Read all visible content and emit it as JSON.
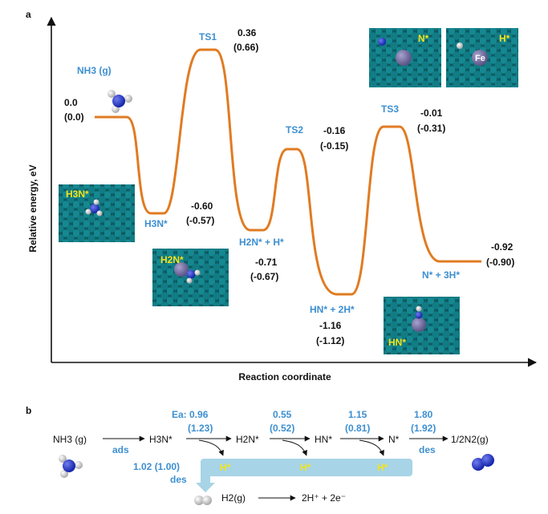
{
  "panel_a": {
    "label": "a",
    "y_axis_label": "Relative energy, eV",
    "x_axis_label": "Reaction coordinate",
    "states": [
      {
        "id": "nh3",
        "name": "NH3 (g)",
        "energy": "0.0",
        "energy_alt": "(0.0)"
      },
      {
        "id": "h3n",
        "name": "H3N*",
        "energy": "-0.60",
        "energy_alt": "(-0.57)"
      },
      {
        "id": "ts1",
        "name": "TS1",
        "energy": "0.36",
        "energy_alt": "(0.66)"
      },
      {
        "id": "h2n",
        "name": "H2N* + H*",
        "energy": "-0.71",
        "energy_alt": "(-0.67)"
      },
      {
        "id": "ts2",
        "name": "TS2",
        "energy": "-0.16",
        "energy_alt": "(-0.15)"
      },
      {
        "id": "hn",
        "name": "HN* + 2H*",
        "energy": "-1.16",
        "energy_alt": "(-1.12)"
      },
      {
        "id": "ts3",
        "name": "TS3",
        "energy": "-0.01",
        "energy_alt": "(-0.31)"
      },
      {
        "id": "n",
        "name": "N* + 3H*",
        "energy": "-0.92",
        "energy_alt": "(-0.90)"
      }
    ],
    "insets": {
      "h3n": "H3N*",
      "h2n": "H2N*",
      "hn": "HN*",
      "n": "N*",
      "h": "H*",
      "fe": "Fe"
    }
  },
  "panel_b": {
    "label": "b",
    "species": [
      "NH3 (g)",
      "H3N*",
      "H2N*",
      "HN*",
      "N*",
      "1/2N2(g)"
    ],
    "steps": [
      {
        "top": "Ea: 0.96",
        "bottom": "(1.23)"
      },
      {
        "top": "0.55",
        "bottom": "(0.52)"
      },
      {
        "top": "1.15",
        "bottom": "(0.81)"
      },
      {
        "top": "1.80",
        "bottom": "(1.92)"
      }
    ],
    "ads_label": "ads",
    "des_label_n2": "des",
    "h_labels": [
      "H*",
      "H*",
      "H*"
    ],
    "h2_des_energy": "1.02 (1.00)",
    "h2_des_label": "des",
    "h2_product": "H2(g)",
    "oxidation": "2H⁺ + 2e⁻"
  },
  "colors": {
    "curve": "#e07b22",
    "blue_label": "#3d8fd1",
    "yellow_label": "#f3e41a",
    "surface": "#0f6b72",
    "nitrogen": "#1e2fb8",
    "iron": "#6f6a9a",
    "band": "#a7d4e6"
  }
}
